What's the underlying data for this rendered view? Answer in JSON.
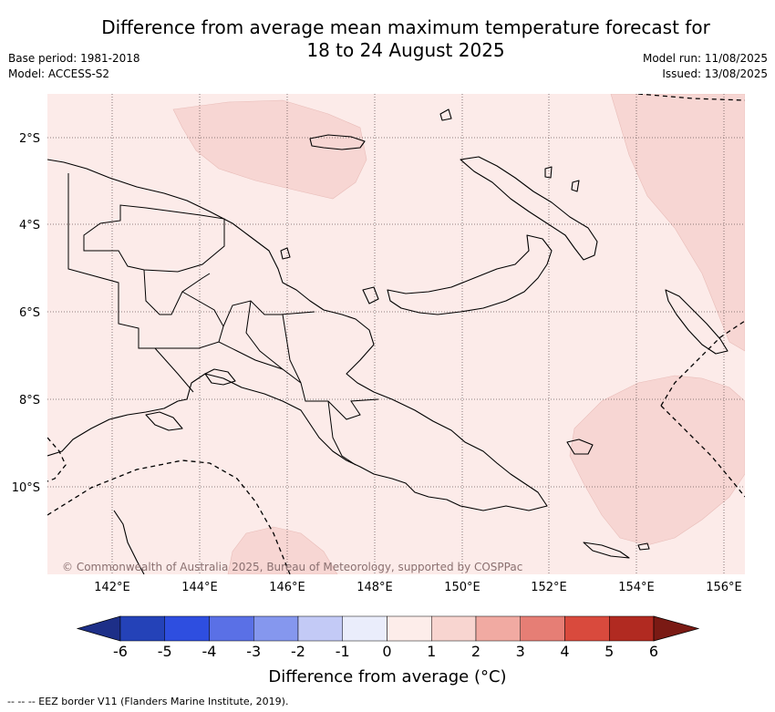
{
  "title": {
    "line1": "Difference from average mean maximum temperature forecast for",
    "line2": "18 to 24 August 2025"
  },
  "meta_left": {
    "base_period": "Base period: 1981-2018",
    "model": "Model: ACCESS-S2"
  },
  "meta_right": {
    "model_run": "Model run: 11/08/2025",
    "issued": "Issued: 13/08/2025"
  },
  "map": {
    "lat_labels": [
      "2°S",
      "4°S",
      "6°S",
      "8°S",
      "10°S"
    ],
    "lon_labels": [
      "142°E",
      "144°E",
      "146°E",
      "148°E",
      "150°E",
      "152°E",
      "154°E",
      "156°E"
    ],
    "copyright": "© Commonwealth of Australia 2025, Bureau of Meteorology, supported by COSPPac",
    "colors": {
      "background_anomaly": "#fcebe9",
      "warm_anomaly": "#f7d6d3",
      "coast": "#000000"
    }
  },
  "colorbar": {
    "ticks": [
      "-6",
      "-5",
      "-4",
      "-3",
      "-2",
      "-1",
      "0",
      "1",
      "2",
      "3",
      "4",
      "5",
      "6"
    ],
    "colors": [
      "#1d2f88",
      "#2442b8",
      "#2e4ee0",
      "#5a70e6",
      "#8597ee",
      "#c3caf6",
      "#eaedfb",
      "#fdedea",
      "#f8d5d0",
      "#f1aaa2",
      "#e67e75",
      "#d94a3d",
      "#b12a21",
      "#7a1a14"
    ],
    "title": "Difference from average (°C)"
  },
  "footer": {
    "eez_note": "-- -- -- EEZ border V11 (Flanders Marine Institute, 2019)."
  }
}
